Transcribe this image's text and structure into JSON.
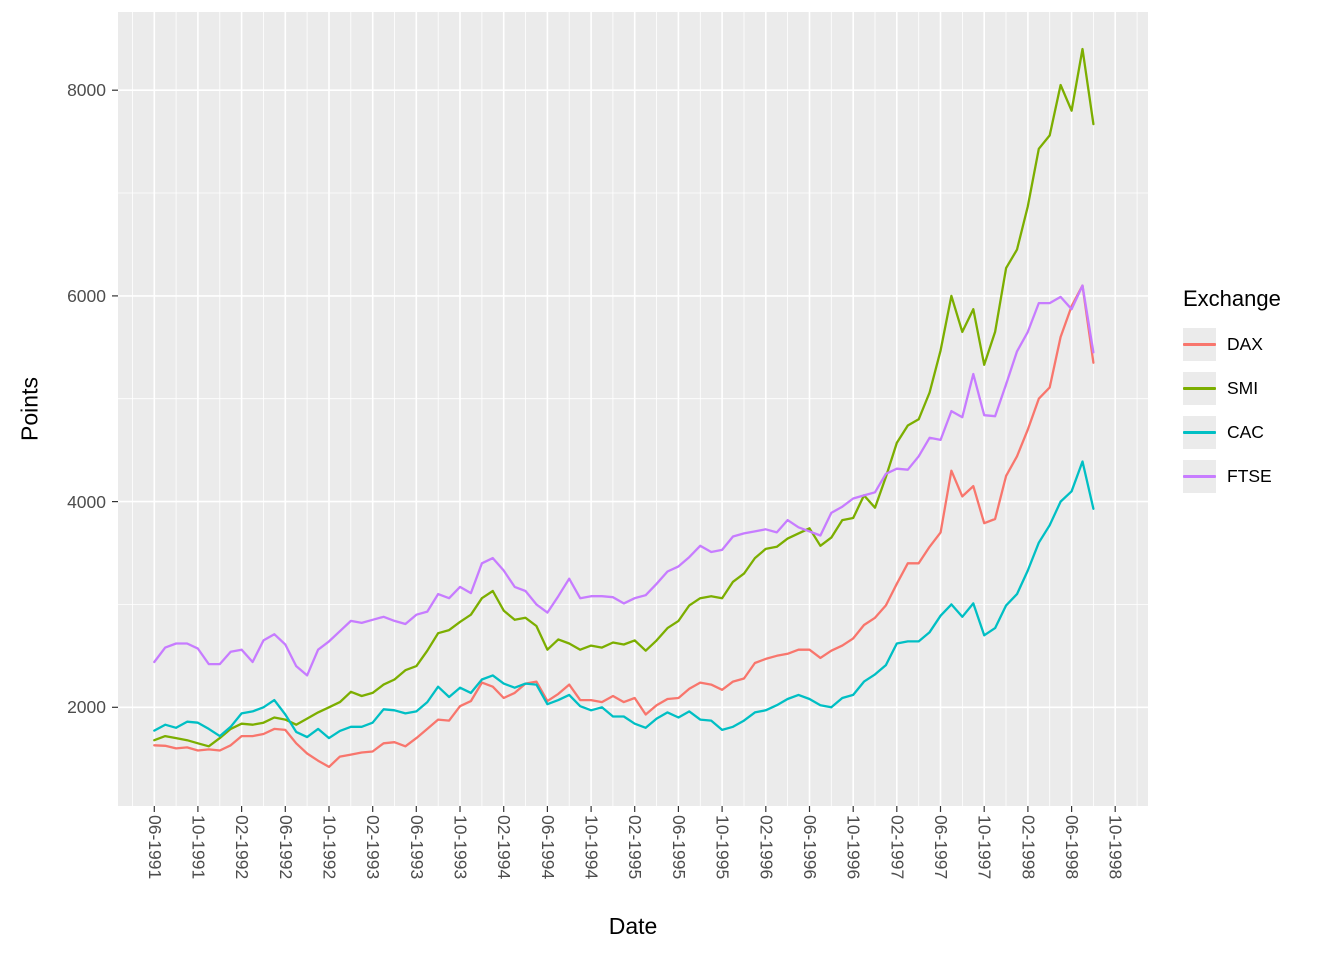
{
  "chart_data": {
    "type": "line",
    "title": "",
    "xlabel": "Date",
    "ylabel": "Points",
    "legend_title": "Exchange",
    "legend_position": "right",
    "grid": true,
    "x_domain": [
      1991.14,
      1999.0
    ],
    "y_domain": [
      1040,
      8760
    ],
    "x_ticks": [
      {
        "value": 1991.4167,
        "label": "06-1991"
      },
      {
        "value": 1991.75,
        "label": "10-1991"
      },
      {
        "value": 1992.0833,
        "label": "02-1992"
      },
      {
        "value": 1992.4167,
        "label": "06-1992"
      },
      {
        "value": 1992.75,
        "label": "10-1992"
      },
      {
        "value": 1993.0833,
        "label": "02-1993"
      },
      {
        "value": 1993.4167,
        "label": "06-1993"
      },
      {
        "value": 1993.75,
        "label": "10-1993"
      },
      {
        "value": 1994.0833,
        "label": "02-1994"
      },
      {
        "value": 1994.4167,
        "label": "06-1994"
      },
      {
        "value": 1994.75,
        "label": "10-1994"
      },
      {
        "value": 1995.0833,
        "label": "02-1995"
      },
      {
        "value": 1995.4167,
        "label": "06-1995"
      },
      {
        "value": 1995.75,
        "label": "10-1995"
      },
      {
        "value": 1996.0833,
        "label": "02-1996"
      },
      {
        "value": 1996.4167,
        "label": "06-1996"
      },
      {
        "value": 1996.75,
        "label": "10-1996"
      },
      {
        "value": 1997.0833,
        "label": "02-1997"
      },
      {
        "value": 1997.4167,
        "label": "06-1997"
      },
      {
        "value": 1997.75,
        "label": "10-1997"
      },
      {
        "value": 1998.0833,
        "label": "02-1998"
      },
      {
        "value": 1998.4167,
        "label": "06-1998"
      },
      {
        "value": 1998.75,
        "label": "10-1998"
      }
    ],
    "y_ticks": [
      {
        "value": 2000,
        "label": "2000"
      },
      {
        "value": 4000,
        "label": "4000"
      },
      {
        "value": 6000,
        "label": "6000"
      },
      {
        "value": 8000,
        "label": "8000"
      }
    ],
    "x_minor": [
      1991.25,
      1991.5833,
      1991.9167,
      1992.25,
      1992.5833,
      1992.9167,
      1993.25,
      1993.5833,
      1993.9167,
      1994.25,
      1994.5833,
      1994.9167,
      1995.25,
      1995.5833,
      1995.9167,
      1996.25,
      1996.5833,
      1996.9167,
      1997.25,
      1997.5833,
      1997.9167,
      1998.25,
      1998.5833,
      1998.9167
    ],
    "y_minor": [
      3000,
      5000,
      7000
    ],
    "colors": {
      "panel_bg": "#EBEBEB",
      "grid": "#FFFFFF",
      "tick_mark": "#333333",
      "axis_text": "#4D4D4D",
      "legend_key_bg": "#EBEBEB"
    },
    "x": [
      1991.417,
      1991.5,
      1991.583,
      1991.667,
      1991.75,
      1991.833,
      1991.917,
      1992.0,
      1992.083,
      1992.167,
      1992.25,
      1992.333,
      1992.417,
      1992.5,
      1992.583,
      1992.667,
      1992.75,
      1992.833,
      1992.917,
      1993.0,
      1993.083,
      1993.167,
      1993.25,
      1993.333,
      1993.417,
      1993.5,
      1993.583,
      1993.667,
      1993.75,
      1993.833,
      1993.917,
      1994.0,
      1994.083,
      1994.167,
      1994.25,
      1994.333,
      1994.417,
      1994.5,
      1994.583,
      1994.667,
      1994.75,
      1994.833,
      1994.917,
      1995.0,
      1995.083,
      1995.167,
      1995.25,
      1995.333,
      1995.417,
      1995.5,
      1995.583,
      1995.667,
      1995.75,
      1995.833,
      1995.917,
      1996.0,
      1996.083,
      1996.167,
      1996.25,
      1996.333,
      1996.417,
      1996.5,
      1996.583,
      1996.667,
      1996.75,
      1996.833,
      1996.917,
      1997.0,
      1997.083,
      1997.167,
      1997.25,
      1997.333,
      1997.417,
      1997.5,
      1997.583,
      1997.667,
      1997.75,
      1997.833,
      1997.917,
      1998.0,
      1998.083,
      1998.167,
      1998.25,
      1998.333,
      1998.417,
      1998.5,
      1998.583
    ],
    "series": [
      {
        "name": "DAX",
        "color": "#F8766D",
        "values": [
          1630,
          1625,
          1600,
          1610,
          1580,
          1590,
          1580,
          1630,
          1720,
          1720,
          1740,
          1790,
          1780,
          1650,
          1550,
          1480,
          1420,
          1520,
          1540,
          1560,
          1570,
          1650,
          1660,
          1620,
          1700,
          1790,
          1880,
          1870,
          2010,
          2060,
          2240,
          2200,
          2090,
          2140,
          2230,
          2250,
          2060,
          2130,
          2220,
          2070,
          2070,
          2050,
          2110,
          2050,
          2090,
          1930,
          2020,
          2080,
          2090,
          2180,
          2240,
          2220,
          2170,
          2250,
          2280,
          2430,
          2470,
          2500,
          2520,
          2560,
          2560,
          2480,
          2550,
          2600,
          2670,
          2800,
          2870,
          2990,
          3200,
          3400,
          3400,
          3560,
          3700,
          4300,
          4050,
          4150,
          3790,
          3830,
          4250,
          4440,
          4700,
          5000,
          5110,
          5600,
          5900,
          6100,
          5350
        ]
      },
      {
        "name": "SMI",
        "color": "#7CAE00",
        "values": [
          1680,
          1720,
          1700,
          1680,
          1650,
          1620,
          1700,
          1790,
          1840,
          1830,
          1850,
          1900,
          1880,
          1830,
          1890,
          1950,
          2000,
          2050,
          2150,
          2110,
          2140,
          2220,
          2270,
          2360,
          2400,
          2550,
          2720,
          2750,
          2830,
          2900,
          3060,
          3130,
          2940,
          2850,
          2870,
          2790,
          2560,
          2660,
          2620,
          2560,
          2600,
          2580,
          2630,
          2610,
          2650,
          2550,
          2650,
          2770,
          2840,
          2990,
          3060,
          3080,
          3060,
          3220,
          3300,
          3450,
          3540,
          3560,
          3640,
          3690,
          3740,
          3570,
          3650,
          3820,
          3840,
          4060,
          3940,
          4240,
          4570,
          4740,
          4800,
          5060,
          5470,
          6000,
          5650,
          5870,
          5330,
          5650,
          6270,
          6450,
          6870,
          7430,
          7560,
          8050,
          7800,
          8400,
          7670
        ]
      },
      {
        "name": "CAC",
        "color": "#00BFC4",
        "values": [
          1773,
          1830,
          1800,
          1860,
          1850,
          1790,
          1720,
          1810,
          1940,
          1960,
          2000,
          2070,
          1930,
          1760,
          1710,
          1790,
          1700,
          1770,
          1810,
          1810,
          1850,
          1980,
          1970,
          1940,
          1960,
          2050,
          2200,
          2100,
          2190,
          2140,
          2270,
          2310,
          2230,
          2190,
          2230,
          2220,
          2030,
          2070,
          2120,
          2010,
          1970,
          2000,
          1910,
          1910,
          1840,
          1800,
          1890,
          1950,
          1900,
          1960,
          1880,
          1870,
          1780,
          1810,
          1870,
          1950,
          1970,
          2020,
          2080,
          2120,
          2080,
          2020,
          2000,
          2090,
          2120,
          2250,
          2320,
          2410,
          2620,
          2640,
          2640,
          2730,
          2890,
          3000,
          2880,
          3010,
          2700,
          2770,
          2990,
          3100,
          3330,
          3600,
          3770,
          4000,
          4100,
          4390,
          3930
        ]
      },
      {
        "name": "FTSE",
        "color": "#C77CFF",
        "values": [
          2440,
          2580,
          2620,
          2620,
          2570,
          2420,
          2420,
          2540,
          2560,
          2440,
          2650,
          2710,
          2610,
          2400,
          2310,
          2560,
          2640,
          2740,
          2840,
          2820,
          2850,
          2880,
          2840,
          2810,
          2900,
          2930,
          3100,
          3060,
          3170,
          3110,
          3400,
          3450,
          3330,
          3170,
          3130,
          3000,
          2920,
          3080,
          3250,
          3060,
          3080,
          3080,
          3070,
          3010,
          3060,
          3090,
          3200,
          3320,
          3370,
          3460,
          3570,
          3510,
          3530,
          3660,
          3690,
          3710,
          3730,
          3700,
          3820,
          3750,
          3710,
          3670,
          3890,
          3950,
          4030,
          4060,
          4090,
          4270,
          4320,
          4310,
          4440,
          4620,
          4600,
          4880,
          4820,
          5240,
          4840,
          4830,
          5140,
          5460,
          5650,
          5930,
          5930,
          5990,
          5870,
          6100,
          5450
        ]
      }
    ]
  }
}
